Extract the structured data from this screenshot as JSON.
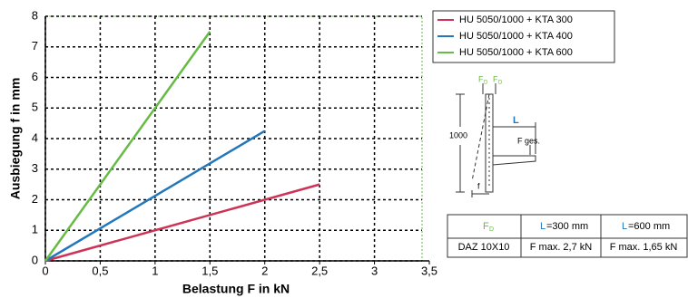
{
  "chart_data": {
    "type": "line",
    "x_label": "Belastung F in kN",
    "y_label": "Ausbiegung f in mm",
    "xlim": [
      0,
      3.5
    ],
    "xticks": [
      0,
      {
        "value": 0.5,
        "label": "0,5"
      },
      1,
      {
        "value": 1.5,
        "label": "1,5"
      },
      2,
      {
        "value": 2.5,
        "label": "2,5"
      },
      3,
      {
        "value": 3.5,
        "label": "3,5"
      }
    ],
    "ylim": [
      0,
      8
    ],
    "yticks": [
      0,
      1,
      2,
      3,
      4,
      5,
      6,
      7,
      8
    ],
    "grid": true,
    "series": [
      {
        "name": "HU 5050/1000 + KTA 300",
        "color": "#cc3355",
        "x": [
          0,
          2.5
        ],
        "values": [
          0,
          2.5
        ]
      },
      {
        "name": "HU 5050/1000 + KTA 400",
        "color": "#2277bb",
        "x": [
          0,
          2
        ],
        "values": [
          0,
          4.25
        ]
      },
      {
        "name": "HU 5050/1000 + KTA 600",
        "color": "#66bb44",
        "x": [
          0,
          1.5
        ],
        "values": [
          0,
          7.5
        ]
      }
    ]
  },
  "diagram": {
    "force": "F",
    "force_sub": "D",
    "length": "L",
    "height": "1000",
    "total": "F ges.",
    "deflection": "f"
  },
  "table": {
    "header": [
      {
        "main": "F",
        "sub": "D"
      },
      {
        "main": "L",
        "rest": "=300 mm"
      },
      {
        "main": "L",
        "rest": "=600 mm"
      }
    ],
    "rows": [
      [
        "DAZ 10X10",
        "F max. 2,7 kN",
        "F max. 1,65 kN"
      ]
    ]
  }
}
